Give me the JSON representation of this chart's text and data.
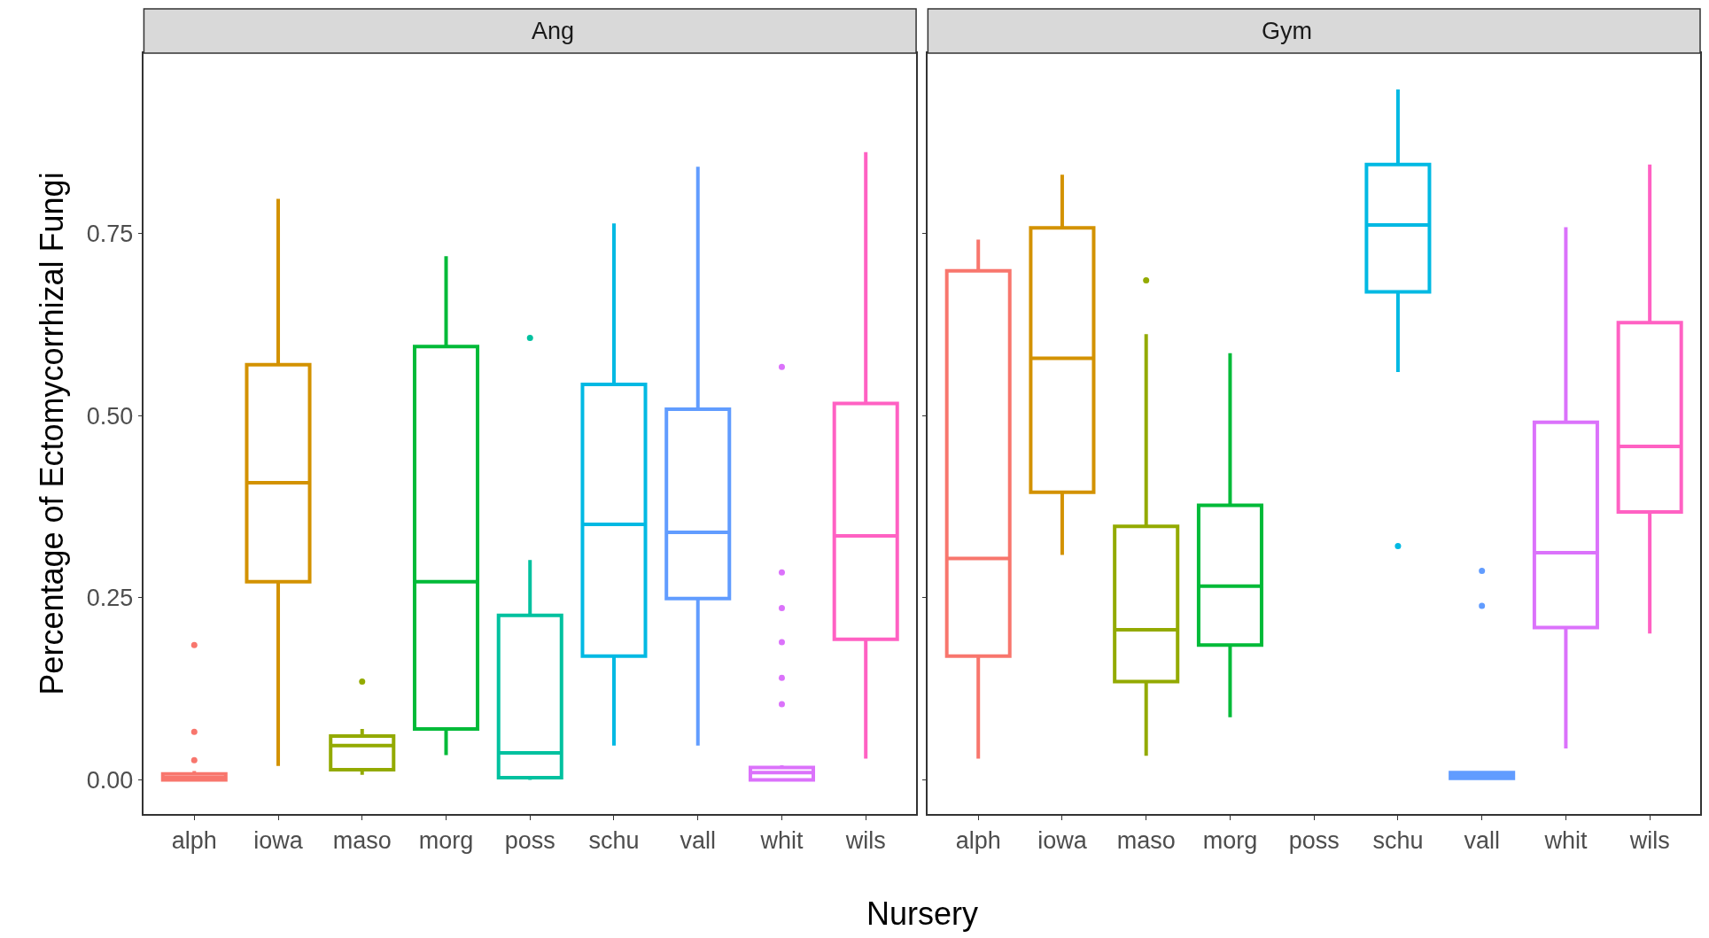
{
  "chart_data": [
    {
      "type": "box",
      "title": "Ang",
      "xlabel": "Nursery",
      "ylabel": "Percentage of Ectomycorrhizal Fungi",
      "categories": [
        "alph",
        "iowa",
        "maso",
        "morg",
        "poss",
        "schu",
        "vall",
        "whit",
        "wils"
      ],
      "colors": [
        "#f8766d",
        "#d39200",
        "#93aa00",
        "#00ba38",
        "#00c19f",
        "#00b9e3",
        "#619cff",
        "#db72fb",
        "#ff61c3"
      ],
      "boxes": [
        {
          "low": 0.0,
          "q1": 0.0,
          "median": 0.003,
          "q3": 0.008,
          "high": 0.012,
          "outliers": [
            0.185,
            0.066,
            0.027
          ]
        },
        {
          "low": 0.019,
          "q1": 0.272,
          "median": 0.408,
          "q3": 0.57,
          "high": 0.798
        },
        {
          "low": 0.007,
          "q1": 0.014,
          "median": 0.047,
          "q3": 0.06,
          "high": 0.07,
          "outliers": [
            0.135
          ]
        },
        {
          "low": 0.034,
          "q1": 0.07,
          "median": 0.272,
          "q3": 0.595,
          "high": 0.719
        },
        {
          "low": 0.0,
          "q1": 0.003,
          "median": 0.037,
          "q3": 0.226,
          "high": 0.302,
          "outliers": [
            0.607
          ]
        },
        {
          "low": 0.047,
          "q1": 0.17,
          "median": 0.351,
          "q3": 0.543,
          "high": 0.764
        },
        {
          "low": 0.047,
          "q1": 0.249,
          "median": 0.34,
          "q3": 0.509,
          "high": 0.842
        },
        {
          "low": 0.0,
          "q1": 0.0,
          "median": 0.01,
          "q3": 0.017,
          "high": 0.02,
          "outliers": [
            0.567,
            0.285,
            0.236,
            0.189,
            0.14,
            0.104
          ]
        },
        {
          "low": 0.029,
          "q1": 0.193,
          "median": 0.335,
          "q3": 0.517,
          "high": 0.862
        }
      ],
      "ylim": [
        -0.047,
        0.998
      ],
      "yticks": [
        {
          "value": 0,
          "label": "0.00"
        },
        {
          "value": 0.25,
          "label": "0.25"
        },
        {
          "value": 0.5,
          "label": "0.50"
        },
        {
          "value": 0.75,
          "label": "0.75"
        }
      ]
    },
    {
      "type": "box",
      "title": "Gym",
      "categories": [
        "alph",
        "iowa",
        "maso",
        "morg",
        "poss",
        "schu",
        "vall",
        "whit",
        "wils"
      ],
      "colors": [
        "#f8766d",
        "#d39200",
        "#93aa00",
        "#00ba38",
        "#00c19f",
        "#00b9e3",
        "#619cff",
        "#db72fb",
        "#ff61c3"
      ],
      "boxes": [
        {
          "low": 0.029,
          "q1": 0.17,
          "median": 0.304,
          "q3": 0.699,
          "high": 0.742
        },
        {
          "low": 0.309,
          "q1": 0.395,
          "median": 0.579,
          "q3": 0.758,
          "high": 0.831
        },
        {
          "low": 0.033,
          "q1": 0.135,
          "median": 0.206,
          "q3": 0.348,
          "high": 0.612,
          "outliers": [
            0.686
          ]
        },
        {
          "low": 0.086,
          "q1": 0.185,
          "median": 0.266,
          "q3": 0.377,
          "high": 0.586
        },
        null,
        {
          "low": 0.56,
          "q1": 0.67,
          "median": 0.762,
          "q3": 0.845,
          "high": 0.948,
          "outliers": [
            0.321
          ]
        },
        {
          "low": 0.0,
          "q1": 0.002,
          "median": 0.006,
          "q3": 0.01,
          "high": 0.012,
          "outliers": [
            0.287,
            0.239
          ]
        },
        {
          "low": 0.043,
          "q1": 0.209,
          "median": 0.312,
          "q3": 0.491,
          "high": 0.759
        },
        {
          "low": 0.201,
          "q1": 0.368,
          "median": 0.458,
          "q3": 0.628,
          "high": 0.845
        }
      ],
      "ylim": [
        -0.047,
        0.998
      ],
      "yticks": [
        {
          "value": 0,
          "label": null
        },
        {
          "value": 0.25,
          "label": null
        },
        {
          "value": 0.5,
          "label": null
        },
        {
          "value": 0.75,
          "label": null
        }
      ],
      "tick_labels": "x"
    }
  ]
}
